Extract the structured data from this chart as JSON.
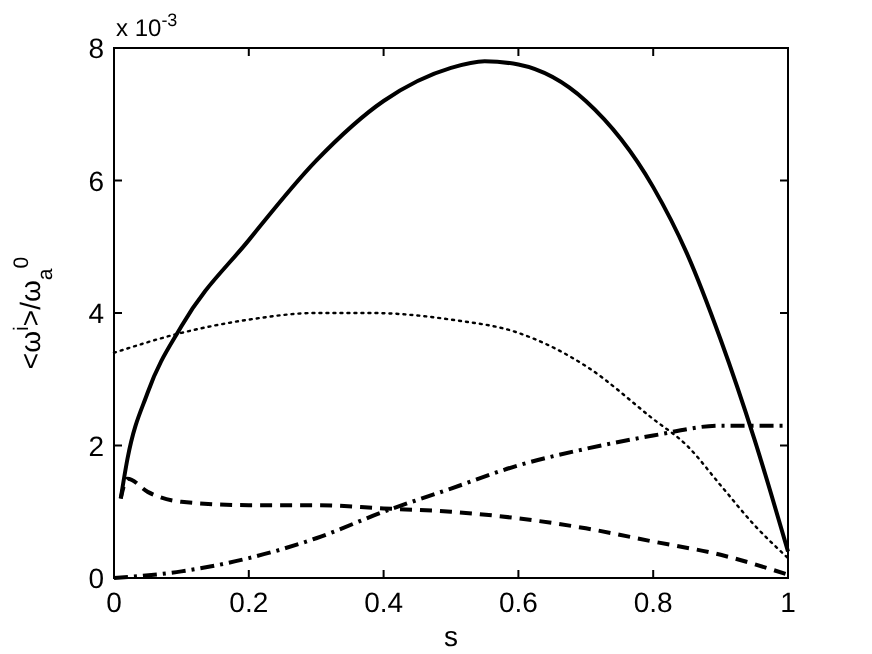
{
  "chart_data": {
    "type": "line",
    "xlabel": "s",
    "ylabel": "<ω$^{i}$>/ω$_{a}$$^{0}$",
    "annotations": [
      "x 10$^{-3}$"
    ],
    "xlim": [
      0,
      1
    ],
    "ylim": [
      0,
      8
    ],
    "xticks": [
      0,
      0.2,
      0.4,
      0.6,
      0.8,
      1
    ],
    "yticks": [
      0,
      2,
      4,
      6,
      8
    ],
    "grid": false,
    "marker": "none",
    "series": [
      {
        "color": "#000000",
        "line_style": "solid",
        "x": [
          0.01,
          0.02,
          0.05,
          0.1,
          0.2,
          0.3,
          0.4,
          0.5,
          0.55,
          0.6,
          0.7,
          0.8,
          0.85,
          0.9,
          0.95,
          1
        ],
        "values": [
          1.2,
          1.8,
          2.8,
          3.8,
          5.1,
          6.3,
          7.2,
          7.7,
          7.8,
          7.75,
          7.2,
          5.9,
          4.9,
          3.6,
          2.1,
          0.4
        ]
      },
      {
        "color": "#000000",
        "line_style": "dotted",
        "x": [
          0,
          0.1,
          0.2,
          0.3,
          0.38,
          0.5,
          0.6,
          0.7,
          0.8,
          0.85,
          0.9,
          0.95,
          1
        ],
        "values": [
          3.4,
          3.7,
          3.9,
          4.0,
          4.0,
          3.9,
          3.7,
          3.2,
          2.4,
          2.0,
          1.4,
          0.8,
          0.3
        ]
      },
      {
        "color": "#000000",
        "line_style": "dashed",
        "x": [
          0.01,
          0.02,
          0.05,
          0.1,
          0.2,
          0.3,
          0.4,
          0.5,
          0.6,
          0.7,
          0.8,
          0.9,
          1
        ],
        "values": [
          1.2,
          1.5,
          1.3,
          1.15,
          1.1,
          1.1,
          1.05,
          1.0,
          0.9,
          0.75,
          0.55,
          0.35,
          0.05
        ]
      },
      {
        "color": "#000000",
        "line_style": "dashdot",
        "x": [
          0,
          0.1,
          0.2,
          0.3,
          0.4,
          0.5,
          0.6,
          0.7,
          0.8,
          0.9,
          1
        ],
        "values": [
          0,
          0.1,
          0.3,
          0.6,
          1.0,
          1.35,
          1.7,
          1.95,
          2.15,
          2.3,
          2.3
        ]
      }
    ]
  }
}
